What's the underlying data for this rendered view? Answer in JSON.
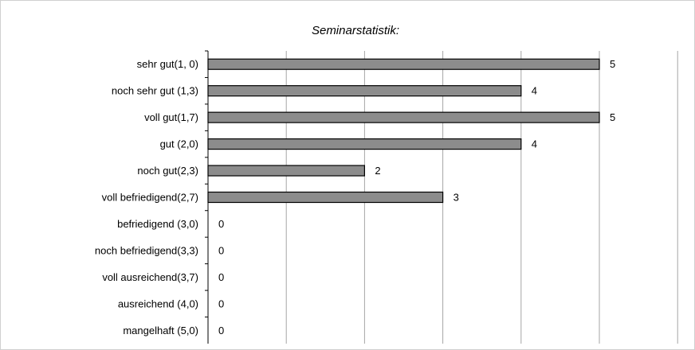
{
  "chart_data": {
    "type": "bar",
    "orientation": "horizontal",
    "title": "Seminarstatistik:",
    "categories": [
      "sehr gut(1, 0)",
      "noch sehr gut (1,3)",
      "voll gut(1,7)",
      "gut (2,0)",
      "noch gut(2,3)",
      "voll befriedigend(2,7)",
      "befriedigend (3,0)",
      "noch befriedigend(3,3)",
      "voll ausreichend(3,7)",
      "ausreichend (4,0)",
      "mangelhaft (5,0)"
    ],
    "values": [
      5,
      4,
      5,
      4,
      2,
      3,
      0,
      0,
      0,
      0,
      0
    ],
    "value_labels": [
      "5",
      "4",
      "5",
      "4",
      "2",
      "3",
      "0",
      "0",
      "0",
      "0",
      "0"
    ],
    "xlim": [
      0,
      6
    ],
    "grid": true,
    "legend": "none",
    "bar_color": "#8c8c8c",
    "bar_edge_color": "#000000",
    "grid_color": "#a6a6a6"
  }
}
